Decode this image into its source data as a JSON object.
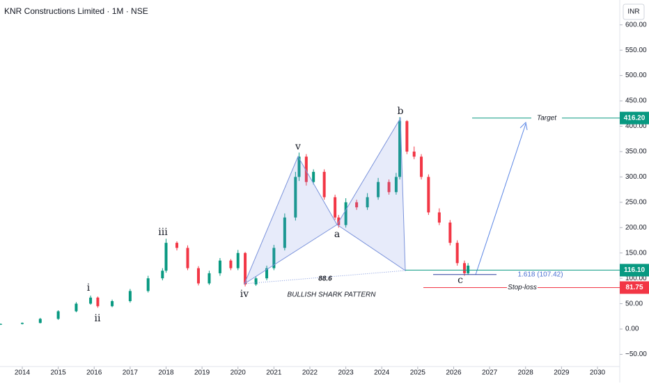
{
  "chart_data": {
    "type": "candlestick",
    "title": "KNR Constructions Limited · 1M · NSE",
    "currency": "INR",
    "x": [
      2013.4,
      2014.0,
      2014.5,
      2015.0,
      2015.5,
      2015.9,
      2016.1,
      2016.5,
      2017.0,
      2017.5,
      2017.9,
      2018.0,
      2018.3,
      2018.6,
      2018.9,
      2019.2,
      2019.5,
      2019.8,
      2020.0,
      2020.2,
      2020.5,
      2020.8,
      2021.0,
      2021.3,
      2021.6,
      2021.7,
      2021.9,
      2022.1,
      2022.4,
      2022.7,
      2022.8,
      2023.0,
      2023.3,
      2023.6,
      2023.9,
      2024.2,
      2024.4,
      2024.5,
      2024.7,
      2024.9,
      2025.1,
      2025.3,
      2025.6,
      2025.9,
      2026.1,
      2026.3,
      2026.4
    ],
    "open": [
      9,
      10,
      12,
      20,
      35,
      50,
      62,
      45,
      55,
      75,
      100,
      115,
      170,
      160,
      120,
      90,
      110,
      135,
      120,
      150,
      88,
      100,
      120,
      160,
      220,
      300,
      340,
      290,
      310,
      260,
      220,
      205,
      250,
      240,
      260,
      290,
      270,
      300,
      410,
      350,
      340,
      300,
      230,
      210,
      170,
      130,
      110
    ],
    "high": [
      11,
      13,
      22,
      37,
      53,
      66,
      64,
      58,
      79,
      105,
      120,
      178,
      173,
      165,
      124,
      115,
      140,
      138,
      156,
      152,
      104,
      125,
      166,
      228,
      310,
      348,
      345,
      315,
      315,
      265,
      225,
      258,
      255,
      268,
      298,
      295,
      308,
      418,
      412,
      360,
      345,
      305,
      238,
      215,
      175,
      135,
      130
    ],
    "low": [
      8,
      9,
      11,
      18,
      33,
      48,
      42,
      43,
      52,
      72,
      96,
      111,
      155,
      116,
      86,
      87,
      105,
      116,
      116,
      84,
      85,
      96,
      116,
      155,
      214,
      292,
      283,
      285,
      255,
      215,
      200,
      200,
      235,
      235,
      255,
      265,
      265,
      295,
      345,
      335,
      295,
      225,
      205,
      165,
      125,
      105,
      107
    ],
    "close": [
      10,
      12,
      20,
      35,
      50,
      62,
      45,
      55,
      75,
      100,
      115,
      170,
      160,
      120,
      90,
      110,
      135,
      120,
      150,
      88,
      100,
      120,
      160,
      220,
      300,
      340,
      290,
      310,
      260,
      220,
      205,
      250,
      240,
      260,
      290,
      270,
      300,
      410,
      350,
      340,
      300,
      230,
      210,
      170,
      130,
      110,
      125
    ],
    "up_color": "#089981",
    "down_color": "#f23645",
    "xlim": [
      2013.38,
      2030.62
    ],
    "xticks": [
      2014,
      2015,
      2016,
      2017,
      2018,
      2019,
      2020,
      2021,
      2022,
      2023,
      2024,
      2025,
      2026,
      2027,
      2028,
      2029,
      2030
    ],
    "ylim": [
      -74,
      649
    ],
    "yticks": [
      {
        "value": 600,
        "label": "600.00"
      },
      {
        "value": 550,
        "label": "550.00"
      },
      {
        "value": 500,
        "label": "500.00"
      },
      {
        "value": 450,
        "label": "450.00"
      },
      {
        "value": 400,
        "label": "400.00"
      },
      {
        "value": 350,
        "label": "350.00"
      },
      {
        "value": 300,
        "label": "300.00"
      },
      {
        "value": 250,
        "label": "250.00"
      },
      {
        "value": 200,
        "label": "200.00"
      },
      {
        "value": 150,
        "label": "150.00"
      },
      {
        "value": 100,
        "label": "100.00"
      },
      {
        "value": 50,
        "label": "50.00"
      },
      {
        "value": 0,
        "label": "0.00"
      },
      {
        "value": -50,
        "label": "−50.00"
      }
    ],
    "levels": [
      {
        "name": "Target",
        "value": 416.2,
        "label": "416.20",
        "color": "#089981"
      },
      {
        "value": 116.1,
        "label": "116.10",
        "color": "#089981"
      },
      {
        "name": "Stop-loss",
        "value": 81.75,
        "label": "81.75",
        "color": "#f23645"
      }
    ],
    "fib_label": "1.618 (107.42)",
    "fib_level": 107.42,
    "pattern_name": "BULLISH SHARK PATTERN",
    "pattern_ratio": "88.6",
    "wave_labels": [
      "i",
      "ii",
      "iii",
      "iv",
      "v",
      "a",
      "b",
      "c"
    ]
  }
}
